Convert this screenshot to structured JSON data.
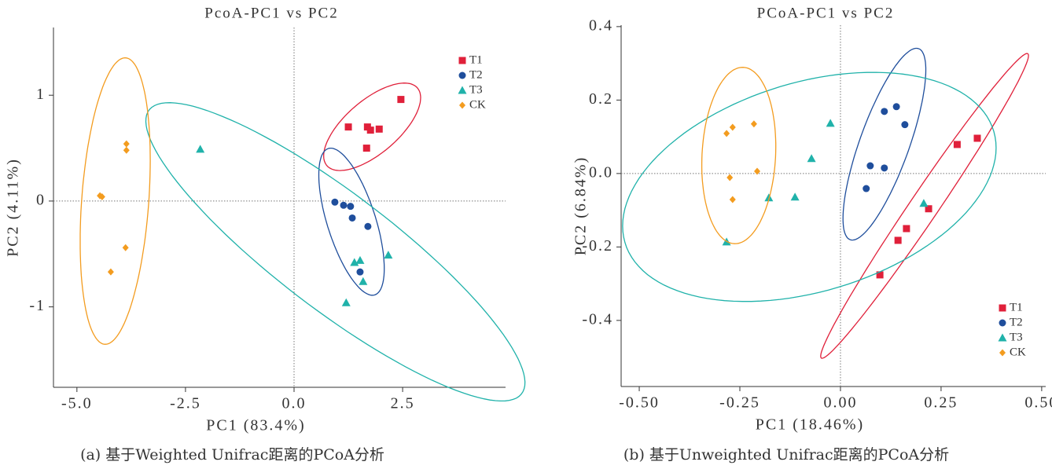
{
  "chart_data": [
    {
      "type": "scatter",
      "title": "PcoA-PC1 vs PC2",
      "x_label": "PC1 (83.4%)",
      "y_label": "PC2 (4.11%)",
      "caption": "(a)  基于Weighted Unifrac距离的PCoA分析",
      "xlim": [
        -5.54,
        4.87
      ],
      "ylim": [
        -1.76,
        1.64
      ],
      "xticks": [
        {
          "value": -5.0,
          "label": "-5.0"
        },
        {
          "value": -2.5,
          "label": "-2.5"
        },
        {
          "value": 0,
          "label": "0.0"
        },
        2.5
      ],
      "yticks": [
        -1,
        0,
        1
      ],
      "zero_lines": true,
      "ellipses": true,
      "legend": "upper right",
      "series": [
        {
          "name": "T1",
          "color": "#e0203a",
          "marker": "square",
          "x": [
            1.25,
            1.69,
            1.76,
            1.96,
            1.67,
            2.46
          ],
          "values": [
            0.7,
            0.7,
            0.67,
            0.68,
            0.5,
            0.96
          ]
        },
        {
          "name": "T2",
          "color": "#1f4e9c",
          "marker": "circle",
          "x": [
            0.94,
            1.14,
            1.3,
            1.34,
            1.7,
            1.52
          ],
          "values": [
            -0.01,
            -0.04,
            -0.05,
            -0.16,
            -0.24,
            -0.67
          ]
        },
        {
          "name": "T3",
          "color": "#20b2aa",
          "marker": "triangle",
          "x": [
            -2.16,
            1.39,
            1.52,
            2.17,
            1.59,
            1.2
          ],
          "values": [
            0.49,
            -0.58,
            -0.56,
            -0.51,
            -0.76,
            -0.96
          ]
        },
        {
          "name": "CK",
          "color": "#f39c1f",
          "marker": "diamond",
          "x": [
            -4.47,
            -4.42,
            -3.86,
            -3.86,
            -3.88,
            -4.22
          ],
          "values": [
            0.05,
            0.04,
            0.54,
            0.48,
            -0.44,
            -0.67
          ]
        }
      ]
    },
    {
      "type": "scatter",
      "title": "PCoA-PC1 vs PC2",
      "x_label": "PC1 (18.46%)",
      "y_label": "PC2 (6.84%)",
      "caption": "(b)  基于Unweighted Unifrac距离的PCoA分析",
      "xlim": [
        -0.545,
        0.51
      ],
      "ylim": [
        -0.58,
        0.404
      ],
      "xticks": [
        {
          "value": -0.5,
          "label": "-0.50"
        },
        {
          "value": -0.25,
          "label": "-0.25"
        },
        {
          "value": 0,
          "label": "0.00"
        },
        0.25,
        {
          "value": 0.5,
          "label": "0.50"
        }
      ],
      "yticks": [
        -0.4,
        -0.2,
        {
          "value": 0,
          "label": "0.0"
        },
        0.2,
        0.4
      ],
      "zero_lines": true,
      "ellipses": true,
      "legend": "lower right",
      "series": [
        {
          "name": "T1",
          "color": "#e0203a",
          "marker": "square",
          "x": [
            0.34,
            0.29,
            0.219,
            0.164,
            0.143,
            0.098
          ],
          "values": [
            0.096,
            0.079,
            -0.096,
            -0.15,
            -0.182,
            -0.276
          ]
        },
        {
          "name": "T2",
          "color": "#1f4e9c",
          "marker": "circle",
          "x": [
            0.139,
            0.109,
            0.16,
            0.074,
            0.109,
            0.064
          ],
          "values": [
            0.182,
            0.169,
            0.133,
            0.021,
            0.015,
            -0.041
          ]
        },
        {
          "name": "T3",
          "color": "#20b2aa",
          "marker": "triangle",
          "x": [
            -0.025,
            -0.072,
            0.207,
            -0.113,
            -0.178,
            -0.283
          ],
          "values": [
            0.137,
            0.041,
            -0.081,
            -0.064,
            -0.066,
            -0.186
          ]
        },
        {
          "name": "CK",
          "color": "#f39c1f",
          "marker": "diamond",
          "x": [
            -0.268,
            -0.215,
            -0.283,
            -0.207,
            -0.275,
            -0.268
          ],
          "values": [
            0.126,
            0.135,
            0.109,
            0.006,
            -0.011,
            -0.071
          ]
        }
      ]
    }
  ]
}
